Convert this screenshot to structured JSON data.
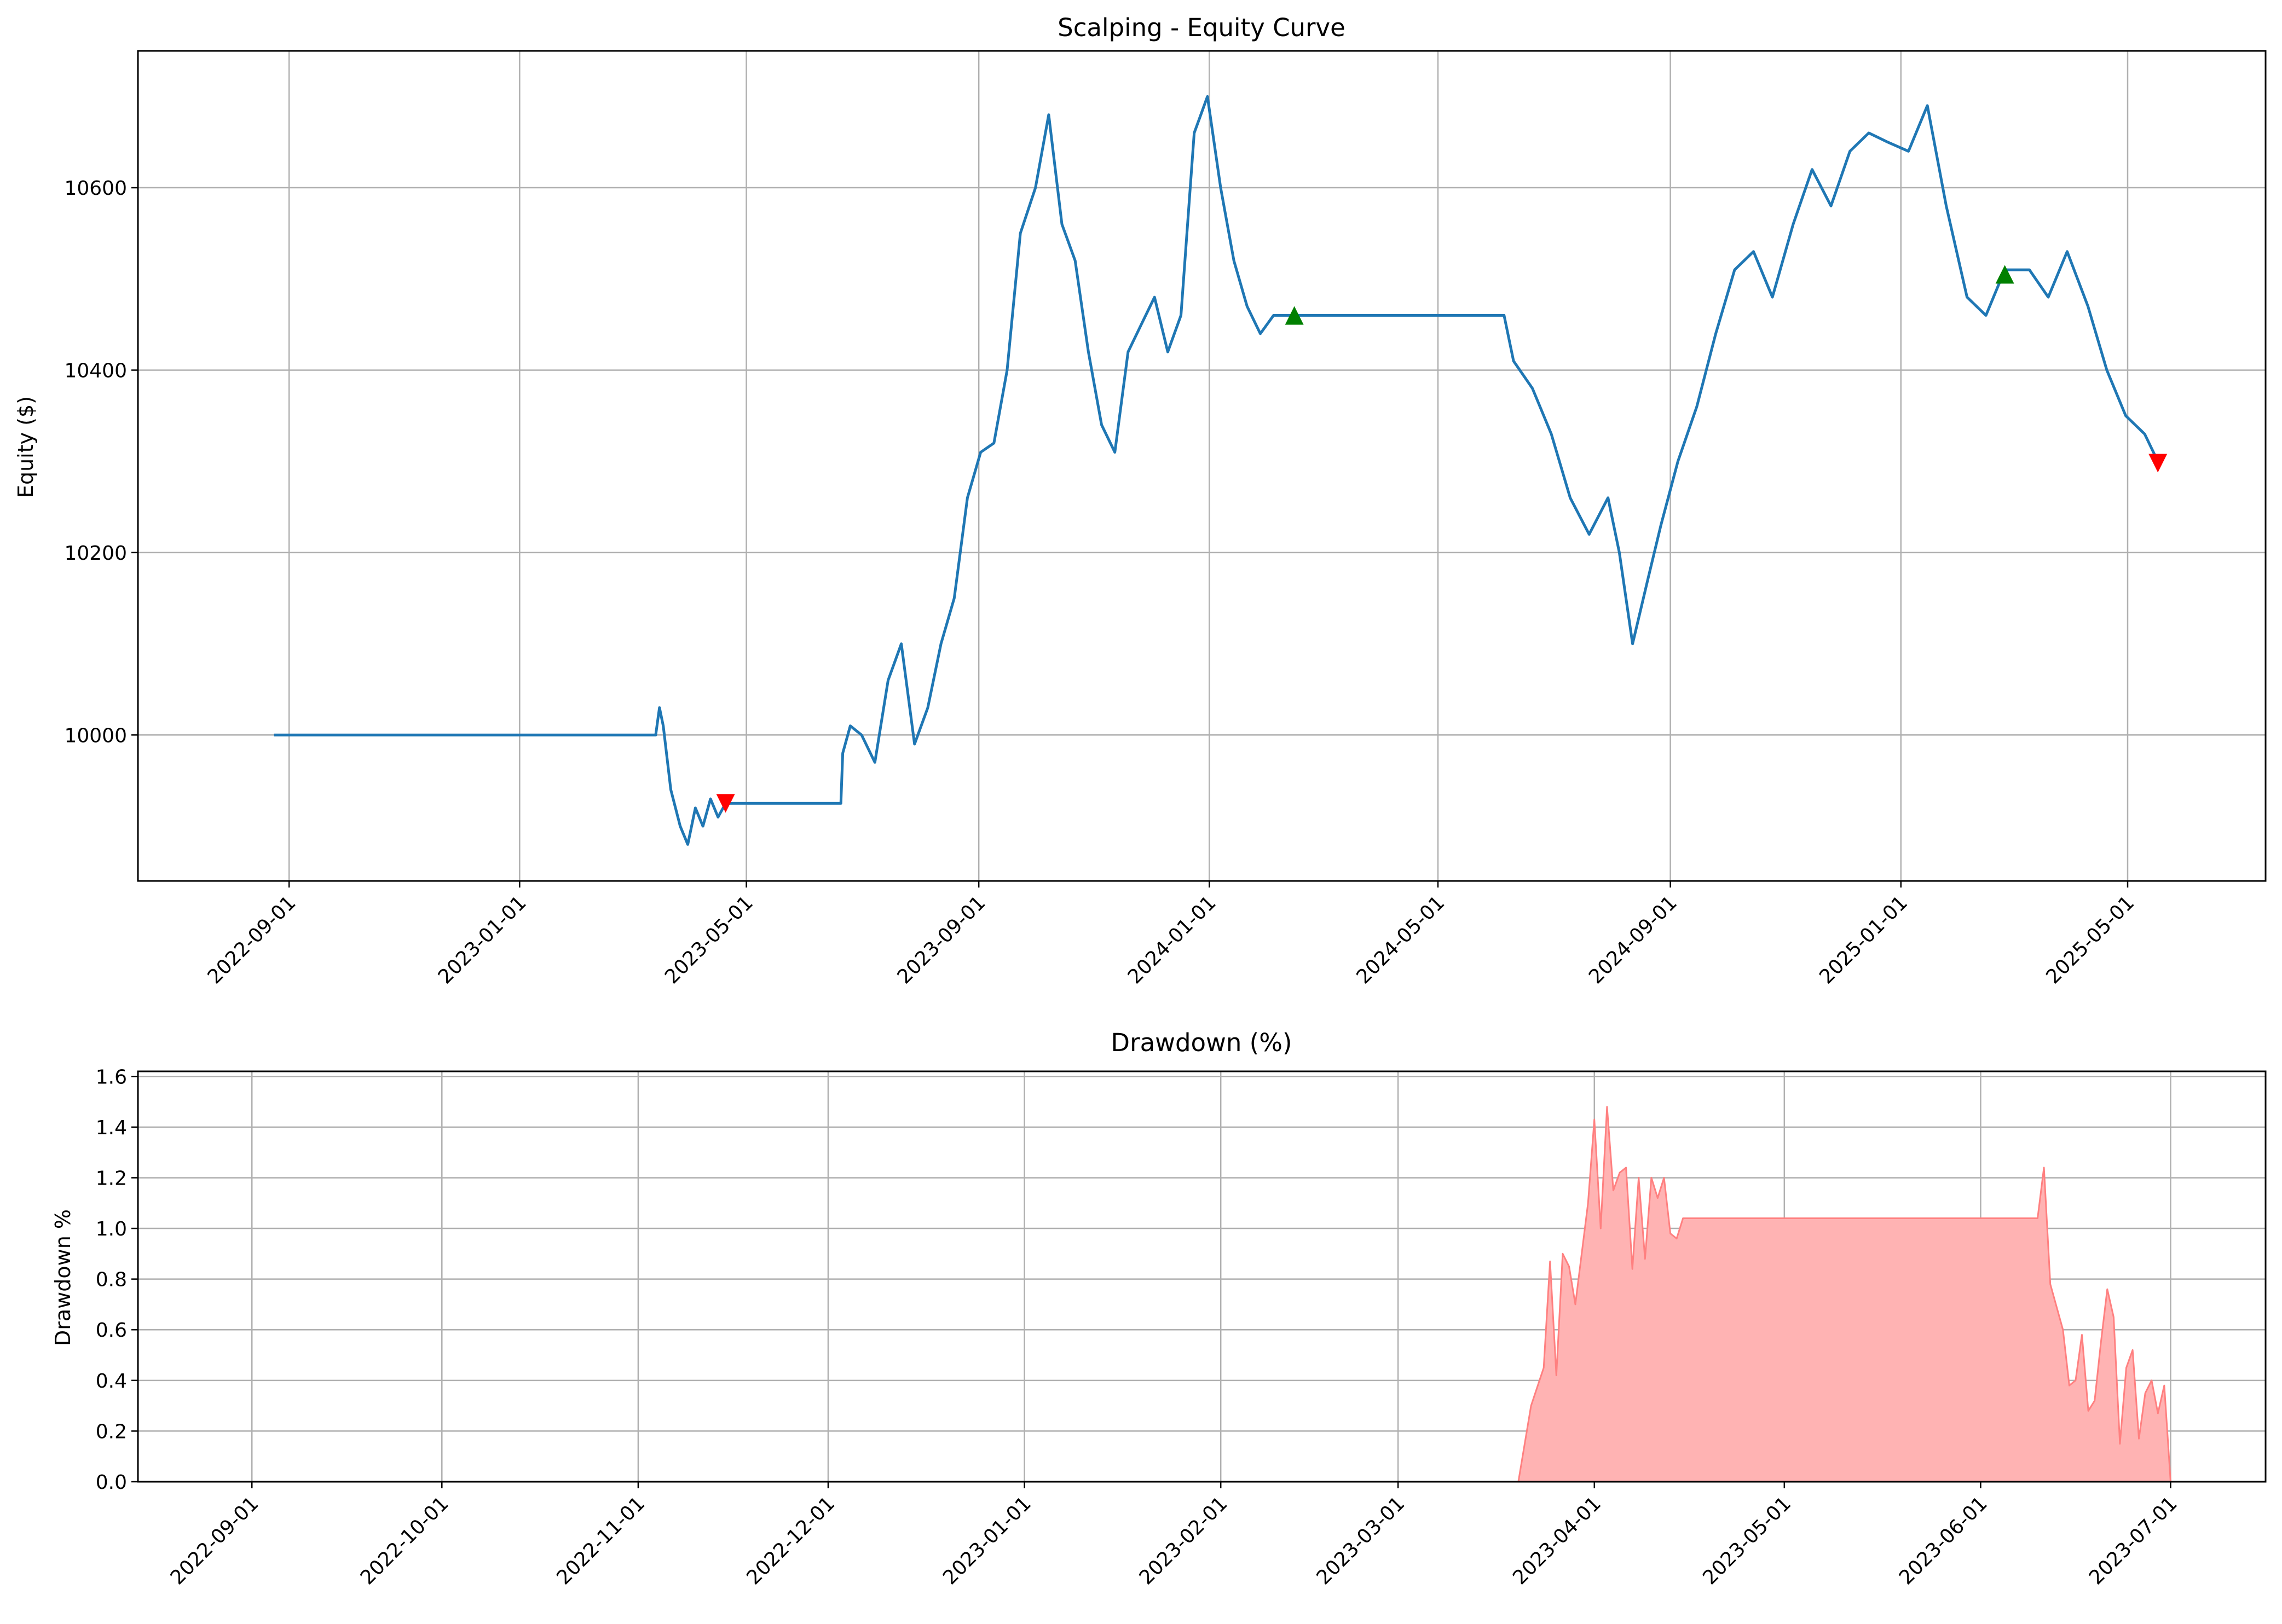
{
  "chart_data": [
    {
      "type": "line",
      "title": "Scalping - Equity Curve",
      "xlabel": "",
      "ylabel": "Equity ($)",
      "x_tick_labels": [
        "2022-09-01",
        "2023-01-01",
        "2023-05-01",
        "2023-09-01",
        "2024-01-01",
        "2024-05-01",
        "2024-09-01",
        "2025-01-01",
        "2025-05-01"
      ],
      "y_tick_labels": [
        "10000",
        "10200",
        "10400",
        "10600"
      ],
      "xlim": [
        "2022-06-13",
        "2025-07-13"
      ],
      "ylim": [
        9840,
        10750
      ],
      "grid": true,
      "line_color": "#1f77b4",
      "series": [
        {
          "x": [
            "2022-08-24",
            "2023-03-14",
            "2023-03-16",
            "2023-03-18",
            "2023-03-22",
            "2023-03-27",
            "2023-03-31",
            "2023-04-04",
            "2023-04-08",
            "2023-04-12",
            "2023-04-16",
            "2023-04-20",
            "2023-04-21",
            "2023-06-20",
            "2023-06-21",
            "2023-06-25",
            "2023-07-01",
            "2023-07-08",
            "2023-07-15",
            "2023-07-22",
            "2023-07-29",
            "2023-08-05",
            "2023-08-12",
            "2023-08-19",
            "2023-08-26",
            "2023-09-02",
            "2023-09-09",
            "2023-09-16",
            "2023-09-23",
            "2023-10-01",
            "2023-10-08",
            "2023-10-15",
            "2023-10-22",
            "2023-10-29",
            "2023-11-05",
            "2023-11-12",
            "2023-11-19",
            "2023-11-26",
            "2023-12-03",
            "2023-12-10",
            "2023-12-17",
            "2023-12-24",
            "2023-12-31",
            "2024-01-07",
            "2024-01-14",
            "2024-01-21",
            "2024-01-28",
            "2024-02-04",
            "2024-02-11",
            "2024-02-15",
            "2024-06-05",
            "2024-06-10",
            "2024-06-20",
            "2024-06-30",
            "2024-07-10",
            "2024-07-20",
            "2024-07-30",
            "2024-08-05",
            "2024-08-12",
            "2024-08-20",
            "2024-08-27",
            "2024-09-05",
            "2024-09-15",
            "2024-09-25",
            "2024-10-05",
            "2024-10-15",
            "2024-10-25",
            "2024-11-05",
            "2024-11-15",
            "2024-11-25",
            "2024-12-05",
            "2024-12-15",
            "2024-12-25",
            "2025-01-05",
            "2025-01-15",
            "2025-01-25",
            "2025-02-05",
            "2025-02-15",
            "2025-02-25",
            "2025-03-10",
            "2025-03-20",
            "2025-03-30",
            "2025-04-10",
            "2025-04-20",
            "2025-04-30",
            "2025-05-10",
            "2025-05-17"
          ],
          "y": [
            10000,
            10000,
            10030,
            10010,
            9940,
            9900,
            9880,
            9920,
            9900,
            9930,
            9910,
            9925,
            9925,
            9925,
            9980,
            10010,
            10000,
            9970,
            10060,
            10100,
            9990,
            10030,
            10100,
            10150,
            10260,
            10310,
            10320,
            10400,
            10550,
            10600,
            10680,
            10560,
            10520,
            10420,
            10340,
            10310,
            10420,
            10450,
            10480,
            10420,
            10460,
            10660,
            10700,
            10600,
            10520,
            10470,
            10440,
            10460,
            10460,
            10460,
            10460,
            10410,
            10380,
            10330,
            10260,
            10220,
            10260,
            10200,
            10100,
            10170,
            10230,
            10300,
            10360,
            10440,
            10510,
            10530,
            10480,
            10560,
            10620,
            10580,
            10640,
            10660,
            10650,
            10640,
            10690,
            10580,
            10480,
            10460,
            10510,
            10510,
            10480,
            10530,
            10470,
            10400,
            10350,
            10330,
            10300
          ]
        }
      ],
      "markers": [
        {
          "type": "sell",
          "x": "2023-04-20",
          "y": 9925,
          "color": "#ff0000",
          "shape": "triangle-down"
        },
        {
          "type": "buy",
          "x": "2024-02-15",
          "y": 10460,
          "color": "#008000",
          "shape": "triangle-up"
        },
        {
          "type": "buy",
          "x": "2025-02-25",
          "y": 10505,
          "color": "#008000",
          "shape": "triangle-up"
        },
        {
          "type": "sell",
          "x": "2025-05-17",
          "y": 10298,
          "color": "#ff0000",
          "shape": "triangle-down"
        }
      ]
    },
    {
      "type": "area",
      "title": "Drawdown (%)",
      "xlabel": "",
      "ylabel": "Drawdown %",
      "x_tick_labels": [
        "2022-09-01",
        "2022-10-01",
        "2022-11-01",
        "2022-12-01",
        "2023-01-01",
        "2023-02-01",
        "2023-03-01",
        "2023-04-01",
        "2023-05-01",
        "2023-06-01",
        "2023-07-01"
      ],
      "y_tick_labels": [
        "0.0",
        "0.2",
        "0.4",
        "0.6",
        "0.8",
        "1.0",
        "1.2",
        "1.4",
        "1.6"
      ],
      "xlim": [
        "2022-08-14",
        "2023-07-16"
      ],
      "ylim": [
        0,
        1.62
      ],
      "grid": true,
      "fill_color": "#ffb3b3",
      "edge_color": "#ff8080",
      "series": [
        {
          "x": [
            "2022-08-24",
            "2023-03-20",
            "2023-03-22",
            "2023-03-24",
            "2023-03-25",
            "2023-03-26",
            "2023-03-27",
            "2023-03-28",
            "2023-03-29",
            "2023-03-30",
            "2023-03-31",
            "2023-04-01",
            "2023-04-02",
            "2023-04-03",
            "2023-04-04",
            "2023-04-05",
            "2023-04-06",
            "2023-04-07",
            "2023-04-08",
            "2023-04-09",
            "2023-04-10",
            "2023-04-11",
            "2023-04-12",
            "2023-04-13",
            "2023-04-14",
            "2023-04-15",
            "2023-04-16",
            "2023-04-17",
            "2023-06-10",
            "2023-06-11",
            "2023-06-12",
            "2023-06-14",
            "2023-06-15",
            "2023-06-16",
            "2023-06-17",
            "2023-06-18",
            "2023-06-19",
            "2023-06-20",
            "2023-06-21",
            "2023-06-22",
            "2023-06-23",
            "2023-06-24",
            "2023-06-25",
            "2023-06-26",
            "2023-06-27",
            "2023-06-28",
            "2023-06-29",
            "2023-06-30",
            "2023-07-01"
          ],
          "y": [
            0,
            0,
            0.3,
            0.45,
            0.87,
            0.42,
            0.9,
            0.85,
            0.7,
            0.9,
            1.1,
            1.43,
            1.0,
            1.48,
            1.15,
            1.22,
            1.24,
            0.84,
            1.2,
            0.88,
            1.2,
            1.12,
            1.2,
            0.98,
            0.96,
            1.04,
            1.04,
            1.04,
            1.04,
            1.24,
            0.78,
            0.6,
            0.38,
            0.4,
            0.58,
            0.28,
            0.32,
            0.55,
            0.76,
            0.65,
            0.15,
            0.45,
            0.52,
            0.17,
            0.35,
            0.4,
            0.27,
            0.38,
            0.0
          ]
        }
      ]
    }
  ]
}
